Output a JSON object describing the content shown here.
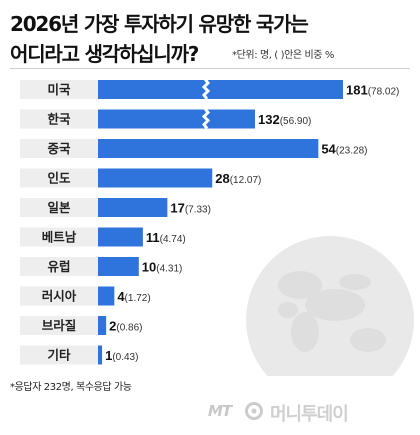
{
  "title_line1": "2026년 가장 투자하기 유망한 국가는",
  "title_line2": "어디라고 생각하십니까?",
  "unit_note": "*단위: 명, (  )안은 비중 %",
  "footnote": "*응답자 232명, 복수응답 가능",
  "source_logo": {
    "mark": "MT",
    "name": "머니투데이"
  },
  "colors": {
    "bar": "#2f74dd",
    "category_band": "#eeeeee",
    "map": "#e9e9e9",
    "logo": "#cccccc"
  },
  "chart_data": {
    "type": "bar",
    "orientation": "horizontal",
    "categories": [
      "미국",
      "한국",
      "중국",
      "인도",
      "일본",
      "베트남",
      "유럽",
      "러시아",
      "브라질",
      "기타"
    ],
    "values": [
      181,
      132,
      54,
      28,
      17,
      11,
      10,
      4,
      2,
      1
    ],
    "labels": [
      {
        "value": "181",
        "share": "(78.02)"
      },
      {
        "value": "132",
        "share": "(56.90)"
      },
      {
        "value": "54",
        "share": "(23.28)"
      },
      {
        "value": "28",
        "share": "(12.07)"
      },
      {
        "value": "17",
        "share": "(7.33)"
      },
      {
        "value": "11",
        "share": "(4.74)"
      },
      {
        "value": "10",
        "share": "(4.31)"
      },
      {
        "value": "4",
        "share": "(1.72)"
      },
      {
        "value": "2",
        "share": "(0.86)"
      },
      {
        "value": "1",
        "share": "(0.43)"
      }
    ],
    "axis_break": {
      "categories": [
        "미국",
        "한국"
      ]
    },
    "grid": false,
    "legend": "none"
  }
}
